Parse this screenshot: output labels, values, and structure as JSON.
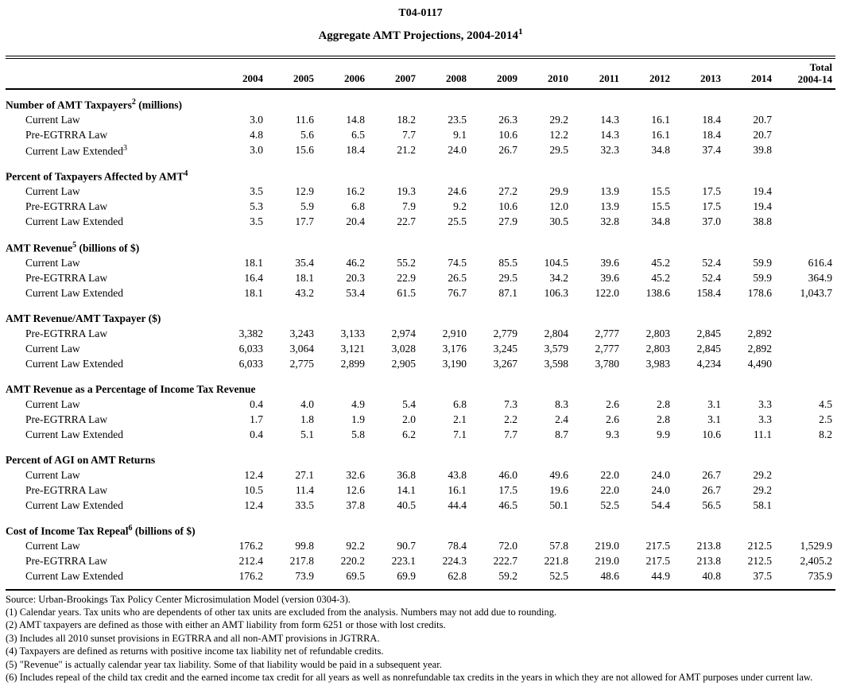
{
  "page": {
    "title": "T04-0117",
    "subtitle": "Aggregate AMT Projections, 2004-2014",
    "subtitle_sup": "1"
  },
  "table": {
    "columns": [
      "2004",
      "2005",
      "2006",
      "2007",
      "2008",
      "2009",
      "2010",
      "2011",
      "2012",
      "2013",
      "2014"
    ],
    "total_column": {
      "line1": "Total",
      "line2": "2004-14"
    },
    "sections": [
      {
        "heading": "Number of AMT Taxpayers",
        "heading_sup": "2",
        "heading_suffix": " (millions)",
        "rows": [
          {
            "label": "Current Law",
            "label_sup": "",
            "values": [
              "3.0",
              "11.6",
              "14.8",
              "18.2",
              "23.5",
              "26.3",
              "29.2",
              "14.3",
              "16.1",
              "18.4",
              "20.7"
            ],
            "total": ""
          },
          {
            "label": "Pre-EGTRRA Law",
            "label_sup": "",
            "values": [
              "4.8",
              "5.6",
              "6.5",
              "7.7",
              "9.1",
              "10.6",
              "12.2",
              "14.3",
              "16.1",
              "18.4",
              "20.7"
            ],
            "total": ""
          },
          {
            "label": "Current Law Extended",
            "label_sup": "3",
            "values": [
              "3.0",
              "15.6",
              "18.4",
              "21.2",
              "24.0",
              "26.7",
              "29.5",
              "32.3",
              "34.8",
              "37.4",
              "39.8"
            ],
            "total": ""
          }
        ]
      },
      {
        "heading": "Percent of Taxpayers Affected by AMT",
        "heading_sup": "4",
        "heading_suffix": "",
        "rows": [
          {
            "label": "Current Law",
            "label_sup": "",
            "values": [
              "3.5",
              "12.9",
              "16.2",
              "19.3",
              "24.6",
              "27.2",
              "29.9",
              "13.9",
              "15.5",
              "17.5",
              "19.4"
            ],
            "total": ""
          },
          {
            "label": "Pre-EGTRRA Law",
            "label_sup": "",
            "values": [
              "5.3",
              "5.9",
              "6.8",
              "7.9",
              "9.2",
              "10.6",
              "12.0",
              "13.9",
              "15.5",
              "17.5",
              "19.4"
            ],
            "total": ""
          },
          {
            "label": "Current Law Extended",
            "label_sup": "",
            "values": [
              "3.5",
              "17.7",
              "20.4",
              "22.7",
              "25.5",
              "27.9",
              "30.5",
              "32.8",
              "34.8",
              "37.0",
              "38.8"
            ],
            "total": ""
          }
        ]
      },
      {
        "heading": "AMT Revenue",
        "heading_sup": "5",
        "heading_suffix": " (billions of $)",
        "rows": [
          {
            "label": "Current Law",
            "label_sup": "",
            "values": [
              "18.1",
              "35.4",
              "46.2",
              "55.2",
              "74.5",
              "85.5",
              "104.5",
              "39.6",
              "45.2",
              "52.4",
              "59.9"
            ],
            "total": "616.4"
          },
          {
            "label": "Pre-EGTRRA Law",
            "label_sup": "",
            "values": [
              "16.4",
              "18.1",
              "20.3",
              "22.9",
              "26.5",
              "29.5",
              "34.2",
              "39.6",
              "45.2",
              "52.4",
              "59.9"
            ],
            "total": "364.9"
          },
          {
            "label": "Current Law Extended",
            "label_sup": "",
            "values": [
              "18.1",
              "43.2",
              "53.4",
              "61.5",
              "76.7",
              "87.1",
              "106.3",
              "122.0",
              "138.6",
              "158.4",
              "178.6"
            ],
            "total": "1,043.7"
          }
        ]
      },
      {
        "heading": "AMT Revenue/AMT Taxpayer ($)",
        "heading_sup": "",
        "heading_suffix": "",
        "rows": [
          {
            "label": "Pre-EGTRRA Law",
            "label_sup": "",
            "values": [
              "3,382",
              "3,243",
              "3,133",
              "2,974",
              "2,910",
              "2,779",
              "2,804",
              "2,777",
              "2,803",
              "2,845",
              "2,892"
            ],
            "total": ""
          },
          {
            "label": "Current Law",
            "label_sup": "",
            "values": [
              "6,033",
              "3,064",
              "3,121",
              "3,028",
              "3,176",
              "3,245",
              "3,579",
              "2,777",
              "2,803",
              "2,845",
              "2,892"
            ],
            "total": ""
          },
          {
            "label": "Current Law Extended",
            "label_sup": "",
            "values": [
              "6,033",
              "2,775",
              "2,899",
              "2,905",
              "3,190",
              "3,267",
              "3,598",
              "3,780",
              "3,983",
              "4,234",
              "4,490"
            ],
            "total": ""
          }
        ]
      },
      {
        "heading": "AMT Revenue as a Percentage of Income Tax Revenue",
        "heading_sup": "",
        "heading_suffix": "",
        "rows": [
          {
            "label": "Current Law",
            "label_sup": "",
            "values": [
              "0.4",
              "4.0",
              "4.9",
              "5.4",
              "6.8",
              "7.3",
              "8.3",
              "2.6",
              "2.8",
              "3.1",
              "3.3"
            ],
            "total": "4.5"
          },
          {
            "label": "Pre-EGTRRA Law",
            "label_sup": "",
            "values": [
              "1.7",
              "1.8",
              "1.9",
              "2.0",
              "2.1",
              "2.2",
              "2.4",
              "2.6",
              "2.8",
              "3.1",
              "3.3"
            ],
            "total": "2.5"
          },
          {
            "label": "Current Law Extended",
            "label_sup": "",
            "values": [
              "0.4",
              "5.1",
              "5.8",
              "6.2",
              "7.1",
              "7.7",
              "8.7",
              "9.3",
              "9.9",
              "10.6",
              "11.1"
            ],
            "total": "8.2"
          }
        ]
      },
      {
        "heading": "Percent of AGI on AMT Returns",
        "heading_sup": "",
        "heading_suffix": "",
        "rows": [
          {
            "label": "Current Law",
            "label_sup": "",
            "values": [
              "12.4",
              "27.1",
              "32.6",
              "36.8",
              "43.8",
              "46.0",
              "49.6",
              "22.0",
              "24.0",
              "26.7",
              "29.2"
            ],
            "total": ""
          },
          {
            "label": "Pre-EGTRRA Law",
            "label_sup": "",
            "values": [
              "10.5",
              "11.4",
              "12.6",
              "14.1",
              "16.1",
              "17.5",
              "19.6",
              "22.0",
              "24.0",
              "26.7",
              "29.2"
            ],
            "total": ""
          },
          {
            "label": "Current Law Extended",
            "label_sup": "",
            "values": [
              "12.4",
              "33.5",
              "37.8",
              "40.5",
              "44.4",
              "46.5",
              "50.1",
              "52.5",
              "54.4",
              "56.5",
              "58.1"
            ],
            "total": ""
          }
        ]
      },
      {
        "heading": "Cost of Income Tax Repeal",
        "heading_sup": "6",
        "heading_suffix": " (billions of $)",
        "rows": [
          {
            "label": "Current Law",
            "label_sup": "",
            "values": [
              "176.2",
              "99.8",
              "92.2",
              "90.7",
              "78.4",
              "72.0",
              "57.8",
              "219.0",
              "217.5",
              "213.8",
              "212.5"
            ],
            "total": "1,529.9"
          },
          {
            "label": "Pre-EGTRRA Law",
            "label_sup": "",
            "values": [
              "212.4",
              "217.8",
              "220.2",
              "223.1",
              "224.3",
              "222.7",
              "221.8",
              "219.0",
              "217.5",
              "213.8",
              "212.5"
            ],
            "total": "2,405.2"
          },
          {
            "label": "Current Law Extended",
            "label_sup": "",
            "values": [
              "176.2",
              "73.9",
              "69.5",
              "69.9",
              "62.8",
              "59.2",
              "52.5",
              "48.6",
              "44.9",
              "40.8",
              "37.5"
            ],
            "total": "735.9"
          }
        ]
      }
    ]
  },
  "footnotes": [
    "Source: Urban-Brookings Tax Policy Center Microsimulation Model (version 0304-3).",
    "(1) Calendar years. Tax units who are dependents of other tax units are excluded from the analysis. Numbers may not add due to rounding.",
    "(2) AMT taxpayers are defined as those with either an AMT liability from form 6251 or those with lost credits.",
    "(3) Includes all 2010 sunset provisions in EGTRRA and all non-AMT provisions in JGTRRA.",
    "(4) Taxpayers are defined as returns with positive income tax liability net of refundable credits.",
    "(5) \"Revenue\" is actually calendar year tax liability.  Some of that liability would be paid in a subsequent year.",
    "(6) Includes repeal of the child tax credit and the earned income tax credit for all years as well as nonrefundable tax credits in the years in which they are not allowed for AMT purposes under current law."
  ]
}
